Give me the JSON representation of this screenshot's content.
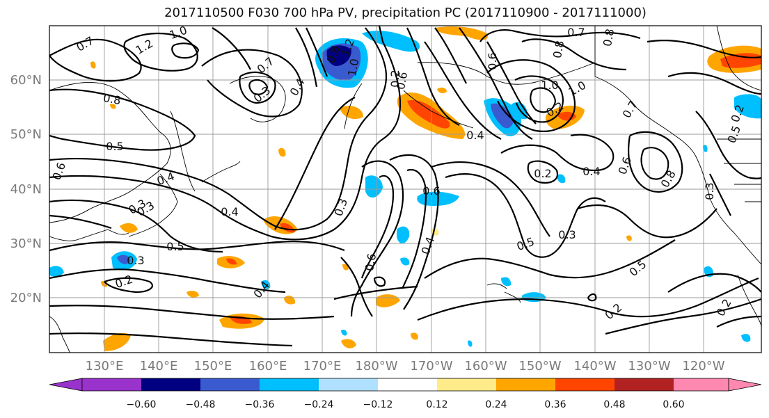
{
  "title": "2017110500 F030 700 hPa PV, precipitation PC (2017110900 - 2017111000)",
  "lat_labels": [
    "60°N",
    "50°N",
    "40°N",
    "30°N",
    "20°N"
  ],
  "lon_labels": [
    "130°E",
    "140°E",
    "150°E",
    "160°E",
    "170°E",
    "180°W",
    "170°W",
    "160°W",
    "150°W",
    "140°W",
    "130°W",
    "120°W"
  ],
  "colorbar": {
    "ticks": [
      "−0.60",
      "−0.48",
      "−0.36",
      "−0.24",
      "−0.12",
      "0.12",
      "0.24",
      "0.36",
      "0.48",
      "0.60"
    ],
    "colors": [
      "#9933cc",
      "#000080",
      "#3a5bd0",
      "#00bfff",
      "#b0e0ff",
      "#ffffff",
      "#ffeb8a",
      "#ffa500",
      "#ff4500",
      "#b22222",
      "#ff88b0"
    ]
  },
  "contour_labels": [
    "0.7",
    "1.0",
    "1.2",
    "0.8",
    "0.7",
    "0.3",
    "0.4",
    "0.8",
    "1.2",
    "1.0",
    "0.6",
    "0.2",
    "0.6",
    "0.7",
    "0.8",
    "1.0",
    "0.8",
    "0.7",
    "0.2",
    "1.0",
    "0.4",
    "0.5",
    "0.5",
    "0.4",
    "0.3",
    "0.6",
    "0.3",
    "0.6",
    "0.4",
    "0.2",
    "0.4",
    "0.6",
    "0.3",
    "0.5",
    "0.3",
    "0.4",
    "0.3",
    "0.2",
    "0.5",
    "0.2",
    "0.4",
    "0.8",
    "0.3",
    "0.6",
    "0.5",
    "0.2",
    "0.2"
  ]
}
